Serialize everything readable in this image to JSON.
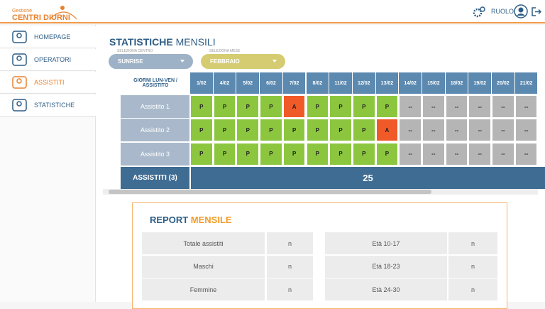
{
  "header": {
    "logo_top": "Gestione",
    "logo_main": "CENTRI DIURNI",
    "role": "RUOLO"
  },
  "sidebar": {
    "items": [
      "HOMEPAGE",
      "OPERATORI",
      "ASSISTITI",
      "STATISTICHE"
    ]
  },
  "main": {
    "title_a": "STATISTICHE",
    "title_b": "MENSILI",
    "filters": [
      {
        "label": "SELEZIONA CENTRO",
        "value": "SUNRISE"
      },
      {
        "label": "SELEZIONA MESE",
        "value": "FEBBRAIO"
      }
    ],
    "table": {
      "corner": "GIORNI LUN-VEN / ASSISTITO",
      "dates": [
        "1/02",
        "4/02",
        "5/02",
        "6/02",
        "7/02",
        "8/02",
        "11/02",
        "12/02",
        "13/02",
        "14/02",
        "15/02",
        "18/02",
        "19/02",
        "20/02",
        "21/02"
      ],
      "rows": [
        {
          "name": "Assistito 1",
          "cells": [
            "P",
            "P",
            "P",
            "P",
            "A",
            "P",
            "P",
            "P",
            "P",
            "--",
            "--",
            "--",
            "--",
            "--",
            "--"
          ]
        },
        {
          "name": "Assistito 2",
          "cells": [
            "P",
            "P",
            "P",
            "P",
            "P",
            "P",
            "P",
            "P",
            "A",
            "--",
            "--",
            "--",
            "--",
            "--",
            "--"
          ]
        },
        {
          "name": "Assistito 3",
          "cells": [
            "P",
            "P",
            "P",
            "P",
            "P",
            "P",
            "P",
            "P",
            "P",
            "--",
            "--",
            "--",
            "--",
            "--",
            "--"
          ]
        }
      ],
      "footer_label": "ASSISTITI (3)",
      "footer_value": "25"
    }
  },
  "report": {
    "title_a": "REPORT",
    "title_b": "MENSILE",
    "rows": [
      [
        "Totale assistiti",
        "n",
        "Età 10-17",
        "n"
      ],
      [
        "Maschi",
        "n",
        "Età 18-23",
        "n"
      ],
      [
        "Femmine",
        "n",
        "Età 24-30",
        "n"
      ]
    ]
  }
}
